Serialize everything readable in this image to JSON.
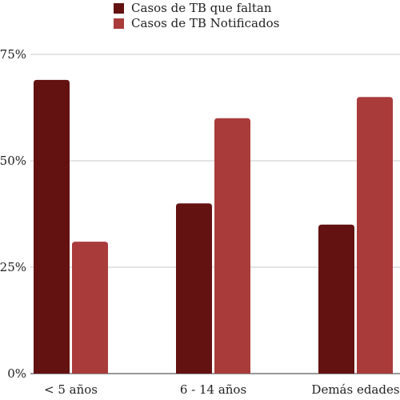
{
  "chart_data": {
    "type": "bar",
    "title": "",
    "xlabel": "",
    "ylabel": "",
    "categories": [
      "< 5 años",
      "6 - 14 años",
      "Demás edades"
    ],
    "series": [
      {
        "name": "Casos de TB que faltan",
        "values": [
          69,
          40,
          35
        ],
        "color": "#631111"
      },
      {
        "name": "Casos de TB Notificados",
        "values": [
          31,
          60,
          65
        ],
        "color": "#a93b3b"
      }
    ],
    "ylim": [
      0,
      75
    ],
    "yticks": [
      0,
      25,
      50,
      75
    ],
    "ytick_labels": [
      "0%",
      "25%",
      "50%",
      "75%"
    ],
    "grid": true,
    "legend": "top"
  }
}
